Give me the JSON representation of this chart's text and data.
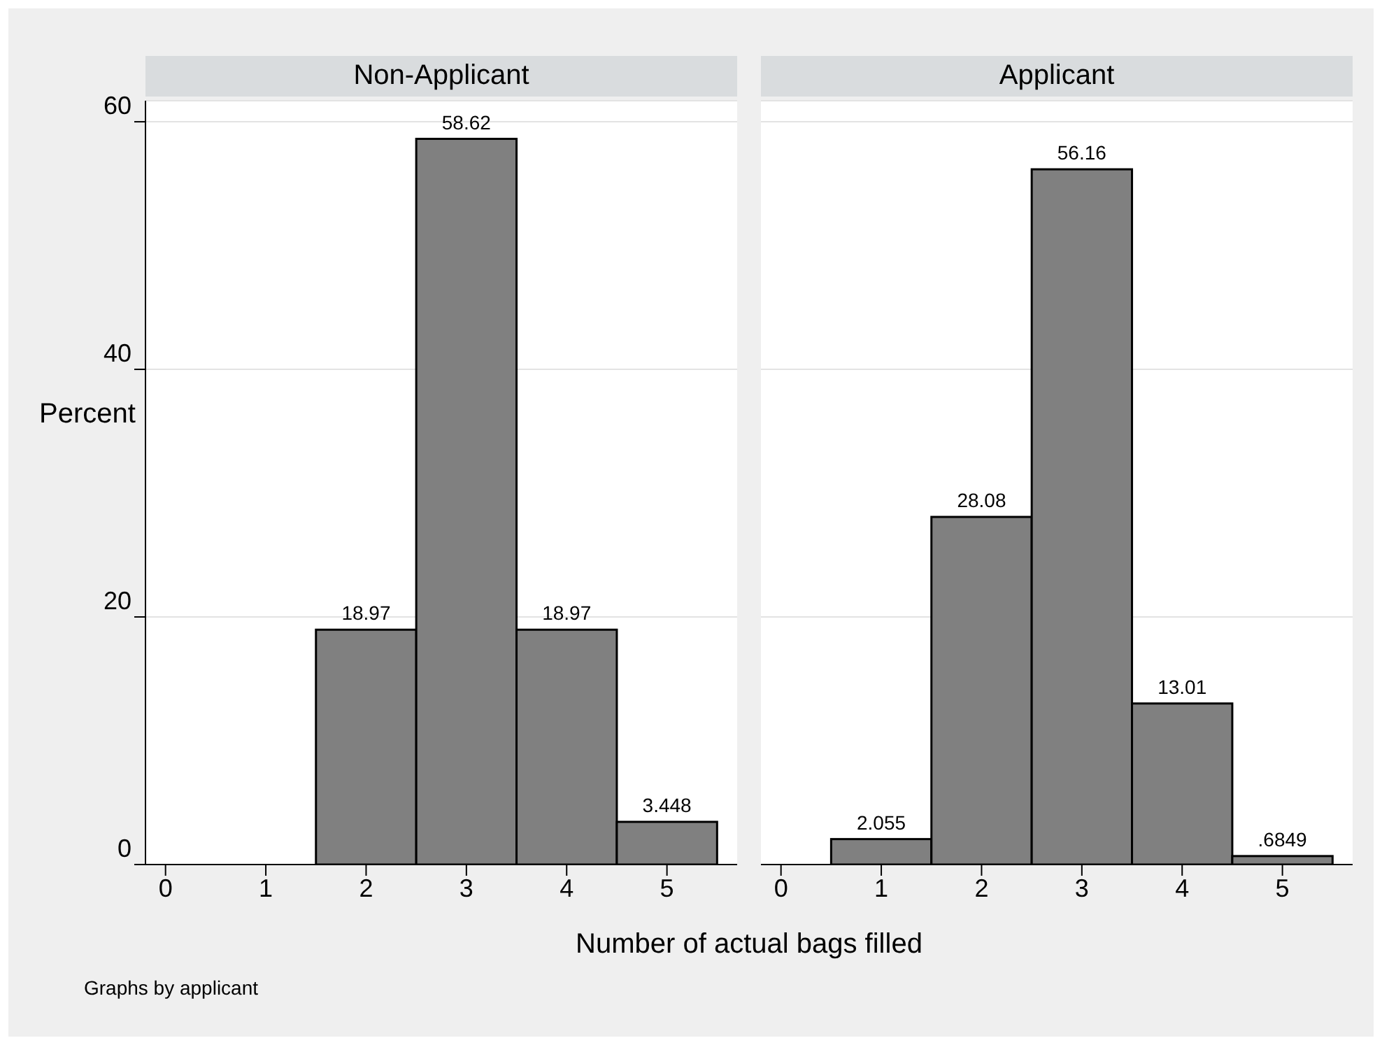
{
  "chart_data": [
    {
      "type": "histogram",
      "title": "Non-Applicant",
      "ylabel": "Percent",
      "xlabel": "Number of actual bags filled",
      "annotations": [
        "Graphs by applicant"
      ],
      "bins": [
        1.5,
        2.5,
        3.5,
        4.5,
        5.5
      ],
      "values": [
        18.97,
        58.62,
        18.97,
        3.448
      ],
      "value_labels": [
        "18.97",
        "58.62",
        "18.97",
        "3.448"
      ],
      "color": "#808080",
      "xlim": [
        -0.2,
        5.7
      ],
      "xticks": [
        0,
        1,
        2,
        3,
        4,
        5
      ],
      "ylim": [
        0,
        61.7
      ],
      "yticks": [
        0,
        20,
        40,
        60
      ],
      "grid": "y",
      "legend": false
    },
    {
      "type": "histogram",
      "title": "Applicant",
      "bins": [
        0.5,
        1.5,
        2.5,
        3.5,
        4.5,
        5.5
      ],
      "values": [
        2.055,
        28.08,
        56.16,
        13.01,
        0.6849
      ],
      "value_labels": [
        "2.055",
        "28.08",
        "56.16",
        "13.01",
        ".6849"
      ],
      "color": "#808080",
      "xlim": [
        -0.2,
        5.7
      ],
      "xticks": [
        0,
        1,
        2,
        3,
        4,
        5
      ],
      "ylim": [
        0,
        61.7
      ],
      "yticks": [
        0,
        20,
        40,
        60
      ],
      "grid": "y",
      "legend": false,
      "tick_labels": "x"
    }
  ]
}
